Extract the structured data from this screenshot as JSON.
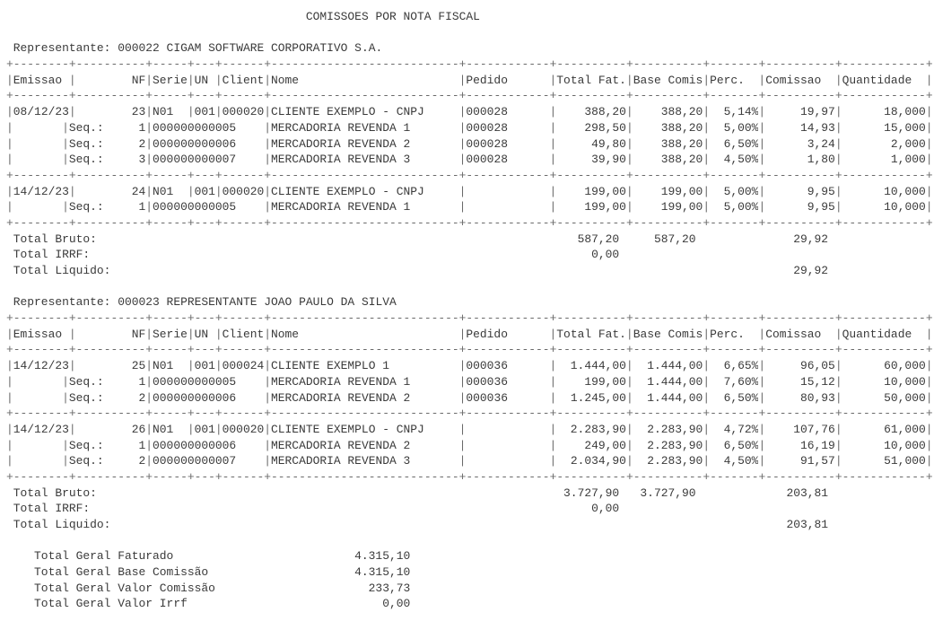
{
  "title": "COMISSOES POR NOTA FISCAL",
  "headers": {
    "emissao": "Emissao",
    "nf": "NF",
    "serie": "Serie",
    "un": "UN",
    "client": "Client",
    "nome": "Nome",
    "pedido": "Pedido",
    "total_fat": "Total Fat.",
    "base_comis": "Base Comis",
    "perc": "Perc.",
    "comissao": "Comissao",
    "quantidade": "Quantidade"
  },
  "seq_label": "Seq.:",
  "totals_labels": {
    "bruto": "Total Bruto:",
    "irrf": "Total IRRF:",
    "liquido": "Total Liquido:"
  },
  "representatives": [
    {
      "label": "Representante: 000022 CIGAM SOFTWARE CORPORATIVO S.A.",
      "invoices": [
        {
          "emissao": "08/12/23",
          "nf": "23",
          "serie": "N01",
          "un": "001",
          "client": "000020",
          "nome": "CLIENTE EXEMPLO - CNPJ",
          "pedido": "000028",
          "total_fat": "388,20",
          "base_comis": "388,20",
          "perc": "5,14%",
          "comissao": "19,97",
          "quantidade": "18,000",
          "items": [
            {
              "seq": "1",
              "produto": "000000000005",
              "nome": "MERCADORIA REVENDA 1",
              "pedido": "000028",
              "total_fat": "298,50",
              "base_comis": "388,20",
              "perc": "5,00%",
              "comissao": "14,93",
              "quantidade": "15,000"
            },
            {
              "seq": "2",
              "produto": "000000000006",
              "nome": "MERCADORIA REVENDA 2",
              "pedido": "000028",
              "total_fat": "49,80",
              "base_comis": "388,20",
              "perc": "6,50%",
              "comissao": "3,24",
              "quantidade": "2,000"
            },
            {
              "seq": "3",
              "produto": "000000000007",
              "nome": "MERCADORIA REVENDA 3",
              "pedido": "000028",
              "total_fat": "39,90",
              "base_comis": "388,20",
              "perc": "4,50%",
              "comissao": "1,80",
              "quantidade": "1,000"
            }
          ]
        },
        {
          "emissao": "14/12/23",
          "nf": "24",
          "serie": "N01",
          "un": "001",
          "client": "000020",
          "nome": "CLIENTE EXEMPLO - CNPJ",
          "pedido": "",
          "total_fat": "199,00",
          "base_comis": "199,00",
          "perc": "5,00%",
          "comissao": "9,95",
          "quantidade": "10,000",
          "items": [
            {
              "seq": "1",
              "produto": "000000000005",
              "nome": "MERCADORIA REVENDA 1",
              "pedido": "",
              "total_fat": "199,00",
              "base_comis": "199,00",
              "perc": "5,00%",
              "comissao": "9,95",
              "quantidade": "10,000"
            }
          ]
        }
      ],
      "totals": {
        "bruto_total_fat": "587,20",
        "bruto_base_comis": "587,20",
        "bruto_comissao": "29,92",
        "irrf": "0,00",
        "liquido_comissao": "29,92"
      }
    },
    {
      "label": "Representante: 000023 REPRESENTANTE JOAO PAULO DA SILVA",
      "invoices": [
        {
          "emissao": "14/12/23",
          "nf": "25",
          "serie": "N01",
          "un": "001",
          "client": "000024",
          "nome": "CLIENTE EXEMPLO 1",
          "pedido": "000036",
          "total_fat": "1.444,00",
          "base_comis": "1.444,00",
          "perc": "6,65%",
          "comissao": "96,05",
          "quantidade": "60,000",
          "items": [
            {
              "seq": "1",
              "produto": "000000000005",
              "nome": "MERCADORIA REVENDA 1",
              "pedido": "000036",
              "total_fat": "199,00",
              "base_comis": "1.444,00",
              "perc": "7,60%",
              "comissao": "15,12",
              "quantidade": "10,000"
            },
            {
              "seq": "2",
              "produto": "000000000006",
              "nome": "MERCADORIA REVENDA 2",
              "pedido": "000036",
              "total_fat": "1.245,00",
              "base_comis": "1.444,00",
              "perc": "6,50%",
              "comissao": "80,93",
              "quantidade": "50,000"
            }
          ]
        },
        {
          "emissao": "14/12/23",
          "nf": "26",
          "serie": "N01",
          "un": "001",
          "client": "000020",
          "nome": "CLIENTE EXEMPLO - CNPJ",
          "pedido": "",
          "total_fat": "2.283,90",
          "base_comis": "2.283,90",
          "perc": "4,72%",
          "comissao": "107,76",
          "quantidade": "61,000",
          "items": [
            {
              "seq": "1",
              "produto": "000000000006",
              "nome": "MERCADORIA REVENDA 2",
              "pedido": "",
              "total_fat": "249,00",
              "base_comis": "2.283,90",
              "perc": "6,50%",
              "comissao": "16,19",
              "quantidade": "10,000"
            },
            {
              "seq": "2",
              "produto": "000000000007",
              "nome": "MERCADORIA REVENDA 3",
              "pedido": "",
              "total_fat": "2.034,90",
              "base_comis": "2.283,90",
              "perc": "4,50%",
              "comissao": "91,57",
              "quantidade": "51,000"
            }
          ]
        }
      ],
      "totals": {
        "bruto_total_fat": "3.727,90",
        "bruto_base_comis": "3.727,90",
        "bruto_comissao": "203,81",
        "irrf": "0,00",
        "liquido_comissao": "203,81"
      }
    }
  ],
  "grand_totals": [
    {
      "label": "Total Geral Faturado",
      "value": "4.315,10"
    },
    {
      "label": "Total Geral Base Comissão",
      "value": "4.315,10"
    },
    {
      "label": "Total Geral Valor Comissão",
      "value": "233,73"
    },
    {
      "label": "Total Geral Valor Irrf",
      "value": "0,00"
    }
  ]
}
